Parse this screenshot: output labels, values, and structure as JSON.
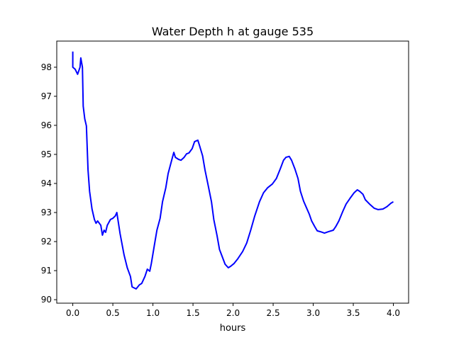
{
  "chart_data": {
    "type": "line",
    "title": "Water Depth h at gauge 535",
    "xlabel": "hours",
    "ylabel": "",
    "xlim": [
      -0.2,
      4.19
    ],
    "ylim": [
      89.88,
      98.9
    ],
    "xticks": [
      "0.0",
      "0.5",
      "1.0",
      "1.5",
      "2.0",
      "2.5",
      "3.0",
      "3.5",
      "4.0"
    ],
    "yticks": [
      "90",
      "91",
      "92",
      "93",
      "94",
      "95",
      "96",
      "97",
      "98"
    ],
    "grid": false,
    "series": [
      {
        "name": "h",
        "color": "#0000ff",
        "x": [
          0.0,
          0.0,
          0.03,
          0.06,
          0.09,
          0.1,
          0.12,
          0.13,
          0.15,
          0.17,
          0.19,
          0.21,
          0.24,
          0.27,
          0.29,
          0.31,
          0.35,
          0.37,
          0.39,
          0.41,
          0.43,
          0.47,
          0.5,
          0.53,
          0.55,
          0.59,
          0.64,
          0.68,
          0.72,
          0.74,
          0.79,
          0.83,
          0.86,
          0.9,
          0.93,
          0.96,
          0.98,
          1.02,
          1.05,
          1.09,
          1.12,
          1.16,
          1.19,
          1.23,
          1.26,
          1.28,
          1.32,
          1.35,
          1.39,
          1.42,
          1.45,
          1.49,
          1.52,
          1.56,
          1.58,
          1.62,
          1.65,
          1.69,
          1.73,
          1.76,
          1.8,
          1.83,
          1.87,
          1.9,
          1.94,
          1.97,
          2.01,
          2.06,
          2.12,
          2.17,
          2.22,
          2.27,
          2.33,
          2.38,
          2.43,
          2.49,
          2.54,
          2.59,
          2.63,
          2.66,
          2.7,
          2.73,
          2.77,
          2.81,
          2.84,
          2.88,
          2.91,
          2.95,
          2.98,
          3.02,
          3.05,
          3.09,
          3.14,
          3.19,
          3.25,
          3.28,
          3.32,
          3.37,
          3.41,
          3.46,
          3.51,
          3.55,
          3.58,
          3.62,
          3.65,
          3.71,
          3.76,
          3.81,
          3.87,
          3.92,
          3.97,
          4.0
        ],
        "y": [
          98.54,
          98.0,
          97.93,
          97.76,
          98.0,
          98.32,
          98.0,
          96.66,
          96.22,
          95.98,
          94.46,
          93.73,
          93.12,
          92.76,
          92.63,
          92.71,
          92.56,
          92.22,
          92.39,
          92.32,
          92.56,
          92.76,
          92.8,
          92.88,
          93.0,
          92.27,
          91.54,
          91.1,
          90.8,
          90.44,
          90.37,
          90.51,
          90.56,
          90.8,
          91.05,
          90.98,
          91.24,
          91.9,
          92.39,
          92.8,
          93.37,
          93.85,
          94.34,
          94.76,
          95.07,
          94.9,
          94.83,
          94.8,
          94.9,
          95.02,
          95.05,
          95.2,
          95.44,
          95.49,
          95.32,
          94.95,
          94.46,
          93.93,
          93.37,
          92.76,
          92.2,
          91.73,
          91.44,
          91.22,
          91.1,
          91.15,
          91.24,
          91.41,
          91.66,
          91.95,
          92.39,
          92.88,
          93.37,
          93.68,
          93.85,
          93.98,
          94.17,
          94.51,
          94.8,
          94.9,
          94.93,
          94.8,
          94.51,
          94.17,
          93.73,
          93.39,
          93.2,
          92.95,
          92.71,
          92.51,
          92.37,
          92.34,
          92.29,
          92.34,
          92.39,
          92.51,
          92.71,
          93.05,
          93.29,
          93.49,
          93.68,
          93.78,
          93.73,
          93.63,
          93.44,
          93.27,
          93.15,
          93.1,
          93.12,
          93.2,
          93.32,
          93.37
        ]
      }
    ]
  }
}
